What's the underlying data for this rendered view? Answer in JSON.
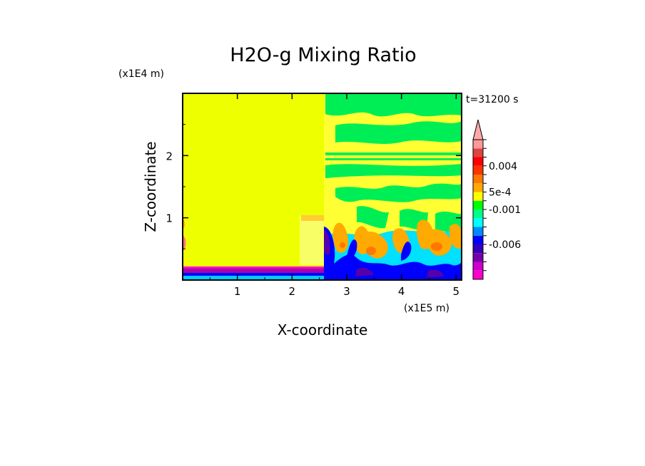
{
  "chart_data": {
    "type": "heatmap",
    "title": "H2O-g Mixing Ratio",
    "xlabel": "X-coordinate",
    "ylabel": "Z-coordinate",
    "x_scale_label": "(x1E5 m)",
    "y_scale_label": "(x1E4 m)",
    "time_label": "t=31200 s",
    "x_ticks": [
      {
        "value": 1,
        "label": "1"
      },
      {
        "value": 2,
        "label": "2"
      },
      {
        "value": 3,
        "label": "3"
      },
      {
        "value": 4,
        "label": "4"
      },
      {
        "value": 5,
        "label": "5"
      }
    ],
    "y_ticks": [
      {
        "value": 1,
        "label": "1"
      },
      {
        "value": 2,
        "label": "2"
      }
    ],
    "xlim": [
      0,
      5.1
    ],
    "ylim": [
      0,
      3.0
    ],
    "colorbar": {
      "levels": [
        {
          "color": "#ff00cc"
        },
        {
          "color": "#cc00cc"
        },
        {
          "color": "#7700aa"
        },
        {
          "color": "#3300bb"
        },
        {
          "color": "#0000ff"
        },
        {
          "color": "#0088ff"
        },
        {
          "color": "#00ffff"
        },
        {
          "color": "#00ff88"
        },
        {
          "color": "#00ff00"
        },
        {
          "color": "#ffff00"
        },
        {
          "color": "#ffaa00"
        },
        {
          "color": "#ff7700"
        },
        {
          "color": "#ff3300"
        },
        {
          "color": "#ff0000"
        },
        {
          "color": "#dd4444"
        },
        {
          "color": "#ff9999"
        }
      ],
      "labels": [
        {
          "text": "0.004",
          "at_level": 13
        },
        {
          "text": "5e-4",
          "at_level": 10
        },
        {
          "text": "-0.001",
          "at_level": 8
        },
        {
          "text": "-0.006",
          "at_level": 4
        }
      ]
    },
    "regions": [
      {
        "name": "left-yellow-zone",
        "x": [
          0,
          2.6
        ],
        "z": [
          0.2,
          3.0
        ],
        "color": "#f0ff00"
      },
      {
        "name": "right-yellow-zone",
        "x": [
          2.6,
          5.1
        ],
        "z": [
          0.2,
          3.0
        ],
        "color": "#ffff44"
      },
      {
        "name": "right-upper-green-bands",
        "x": [
          2.6,
          5.1
        ],
        "z": [
          1.0,
          3.0
        ],
        "color": "#00ee55"
      },
      {
        "name": "right-lower-orange-plumes",
        "x": [
          2.6,
          5.1
        ],
        "z": [
          0.1,
          1.0
        ],
        "color": "#ffaa00"
      },
      {
        "name": "right-lower-blue-base",
        "x": [
          2.6,
          5.1
        ],
        "z": [
          0,
          0.5
        ],
        "color": "#0000ff"
      },
      {
        "name": "left-purple-boundary-layer",
        "x": [
          0,
          2.6
        ],
        "z": [
          0.05,
          0.2
        ],
        "color": "#aa00aa"
      },
      {
        "name": "left-surface-cyan",
        "x": [
          0,
          2.6
        ],
        "z": [
          0,
          0.05
        ],
        "color": "#00ccff"
      }
    ]
  }
}
